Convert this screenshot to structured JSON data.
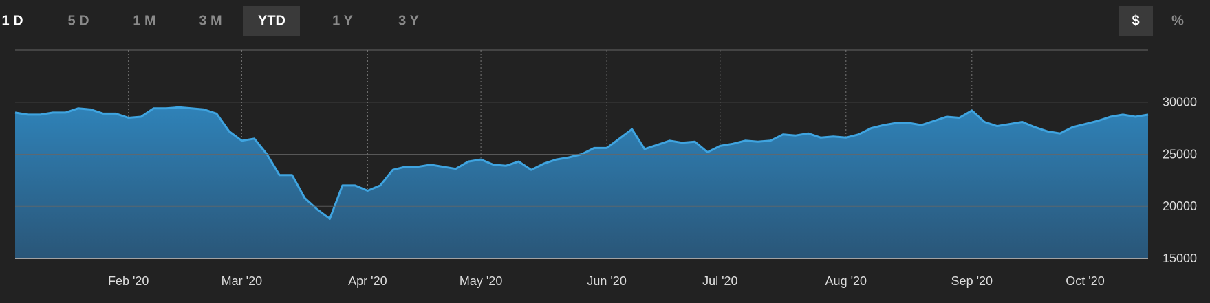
{
  "controls": {
    "ranges": [
      "1 D",
      "5 D",
      "1 M",
      "3 M",
      "YTD",
      "1 Y",
      "3 Y"
    ],
    "selected_range": 4,
    "units": [
      "$",
      "%"
    ],
    "selected_unit": 0
  },
  "chart_data": {
    "type": "area",
    "categories": [
      null,
      null,
      null,
      null,
      null,
      null,
      null,
      null,
      null,
      "Feb '20",
      null,
      null,
      null,
      null,
      null,
      null,
      null,
      null,
      "Mar '20",
      null,
      null,
      null,
      null,
      null,
      null,
      null,
      null,
      null,
      "Apr '20",
      null,
      null,
      null,
      null,
      null,
      null,
      null,
      null,
      "May '20",
      null,
      null,
      null,
      null,
      null,
      null,
      null,
      null,
      null,
      "Jun '20",
      null,
      null,
      null,
      null,
      null,
      null,
      null,
      null,
      "Jul '20",
      null,
      null,
      null,
      null,
      null,
      null,
      null,
      null,
      null,
      "Aug '20",
      null,
      null,
      null,
      null,
      null,
      null,
      null,
      null,
      null,
      "Sep '20",
      null,
      null,
      null,
      null,
      null,
      null,
      null,
      null,
      "Oct '20",
      null,
      null,
      null,
      null,
      null
    ],
    "series": [
      {
        "color": "#3fa4e0",
        "values": [
          29000,
          28800,
          28800,
          29000,
          29000,
          29400,
          29300,
          28900,
          28900,
          28500,
          28600,
          29400,
          29400,
          29500,
          29400,
          29300,
          28900,
          27200,
          26300,
          26500,
          25000,
          23000,
          23000,
          20800,
          19700,
          18800,
          22000,
          22000,
          21500,
          22000,
          23500,
          23800,
          23800,
          24000,
          23800,
          23600,
          24300,
          24500,
          24000,
          23900,
          24300,
          23500,
          24100,
          24500,
          24700,
          25000,
          25600,
          25600,
          26500,
          27400,
          25500,
          25900,
          26300,
          26100,
          26200,
          25200,
          25800,
          26000,
          26300,
          26200,
          26300,
          26900,
          26800,
          27000,
          26600,
          26700,
          26600,
          26900,
          27500,
          27800,
          28000,
          28000,
          27800,
          28200,
          28600,
          28500,
          29200,
          28100,
          27700,
          27900,
          28100,
          27600,
          27200,
          27000,
          27600,
          27900,
          28200,
          28600,
          28800,
          28600,
          28800
        ]
      }
    ],
    "ylim": [
      15000,
      35000
    ],
    "yticks": [
      15000,
      20000,
      25000,
      30000
    ],
    "grid": true
  }
}
